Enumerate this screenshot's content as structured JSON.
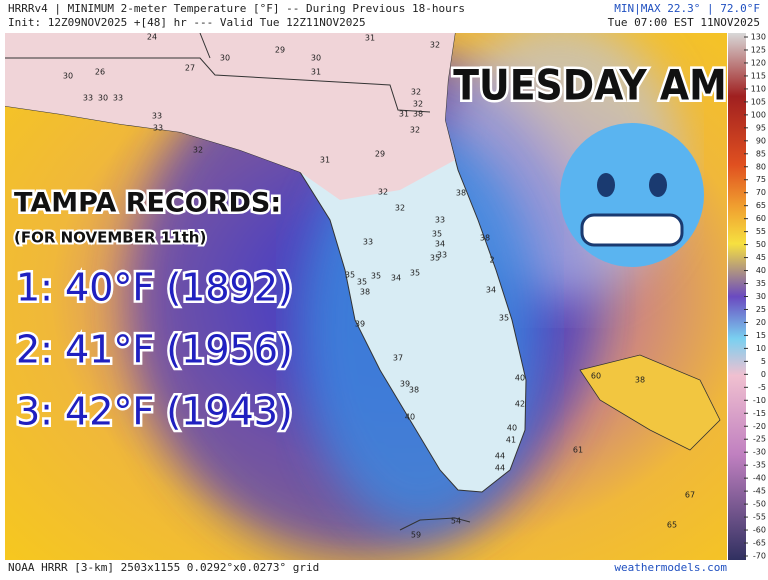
{
  "header": {
    "line1": "HRRRv4 | MINIMUM 2-meter Temperature [°F] -- During Previous 18-hours",
    "line2": "Init: 12Z09NOV2025 +[48] hr --- Valid Tue 12Z11NOV2025",
    "minmax": "MIN|MAX 22.3° | 72.0°F",
    "valid": "Tue 07:00 EST 11NOV2025"
  },
  "overlay": {
    "day": "TUESDAY AM",
    "records_title": "TAMPA RECORDS:",
    "records_subtitle": "(FOR NOVEMBER 11th)",
    "records": [
      "1: 40°F (1892)",
      "2: 41°F (1956)",
      "3: 42°F (1943)"
    ]
  },
  "stations": [
    24,
    29,
    31,
    32,
    30,
    30,
    30,
    26,
    27,
    31,
    33,
    30,
    33,
    32,
    32,
    31,
    38,
    33,
    33,
    32,
    32,
    29,
    31,
    32,
    32,
    33,
    33,
    35,
    34,
    33,
    35,
    38,
    38,
    2,
    35,
    35,
    34,
    35,
    35,
    38,
    34,
    35,
    39,
    37,
    40,
    39,
    38,
    40,
    42,
    40,
    41,
    44,
    44,
    54,
    59,
    60,
    38,
    61,
    67,
    65
  ],
  "colorbar": {
    "ticks": [
      130,
      125,
      120,
      115,
      110,
      105,
      100,
      95,
      90,
      85,
      80,
      75,
      70,
      65,
      60,
      55,
      50,
      45,
      40,
      35,
      30,
      25,
      20,
      15,
      10,
      5,
      0,
      -5,
      -10,
      -15,
      -20,
      -25,
      -30,
      -35,
      -40,
      -45,
      -50,
      -55,
      -60,
      -65,
      -70
    ]
  },
  "footer": {
    "left": "NOAA HRRR [3-km] 2503x1155 0.0292°x0.0273° grid",
    "right": "weathermodels.com"
  }
}
